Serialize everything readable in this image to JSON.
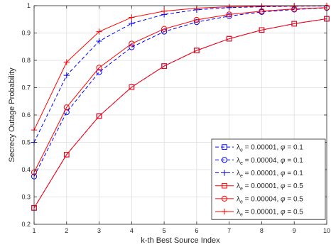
{
  "chart_data": {
    "type": "line",
    "xlabel": "k-th Best Source Index",
    "ylabel": "Secrecy Outage Probability",
    "xlim": [
      1,
      10
    ],
    "ylim": [
      0.2,
      1
    ],
    "x": [
      1,
      2,
      3,
      4,
      5,
      6,
      7,
      8,
      9,
      10
    ],
    "x_ticks": [
      1,
      2,
      3,
      4,
      5,
      6,
      7,
      8,
      9,
      10
    ],
    "y_ticks": [
      0.2,
      0.3,
      0.4,
      0.5,
      0.6,
      0.7,
      0.8,
      0.9,
      1
    ],
    "grid": true,
    "legend_position": "bottom-right",
    "series": [
      {
        "legend": {
          "lambda_base": "λ",
          "lambda_sub": "e",
          "rest": " = 0.00001, ",
          "phi": "φ",
          "phi_val": " = 0.1"
        },
        "color": "#0000ff",
        "marker": "square",
        "dashed": true,
        "values": [
          0.26,
          0.455,
          0.596,
          0.702,
          0.779,
          0.836,
          0.879,
          0.911,
          0.934,
          0.952
        ]
      },
      {
        "legend": {
          "lambda_base": "λ",
          "lambda_sub": "e",
          "rest": " = 0.00004, ",
          "phi": "φ",
          "phi_val": " = 0.1"
        },
        "color": "#0000ff",
        "marker": "circle",
        "dashed": true,
        "values": [
          0.375,
          0.61,
          0.757,
          0.848,
          0.905,
          0.94,
          0.962,
          0.977,
          0.986,
          0.992
        ]
      },
      {
        "legend": {
          "lambda_base": "λ",
          "lambda_sub": "e",
          "rest": " = 0.00001, ",
          "phi": "φ",
          "phi_val": " = 0.1"
        },
        "color": "#0000ff",
        "marker": "plus",
        "dashed": true,
        "values": [
          0.5,
          0.745,
          0.87,
          0.935,
          0.968,
          0.985,
          0.993,
          0.996,
          0.998,
          0.999
        ]
      },
      {
        "legend": {
          "lambda_base": "λ",
          "lambda_sub": "e",
          "rest": " = 0.00001, ",
          "phi": "φ",
          "phi_val": " = 0.5"
        },
        "color": "#ff0000",
        "marker": "square",
        "dashed": false,
        "values": [
          0.26,
          0.455,
          0.596,
          0.702,
          0.779,
          0.836,
          0.879,
          0.911,
          0.934,
          0.952
        ]
      },
      {
        "legend": {
          "lambda_base": "λ",
          "lambda_sub": "e",
          "rest": " = 0.00004, ",
          "phi": "φ",
          "phi_val": " = 0.5"
        },
        "color": "#ff0000",
        "marker": "circle",
        "dashed": false,
        "values": [
          0.39,
          0.628,
          0.773,
          0.861,
          0.915,
          0.948,
          0.968,
          0.98,
          0.988,
          0.993
        ]
      },
      {
        "legend": {
          "lambda_base": "λ",
          "lambda_sub": "e",
          "rest": " = 0.00001, ",
          "phi": "φ",
          "phi_val": " = 0.5"
        },
        "color": "#ff0000",
        "marker": "plus",
        "dashed": false,
        "values": [
          0.545,
          0.793,
          0.905,
          0.957,
          0.98,
          0.991,
          0.996,
          0.998,
          0.999,
          1.0
        ]
      }
    ]
  }
}
